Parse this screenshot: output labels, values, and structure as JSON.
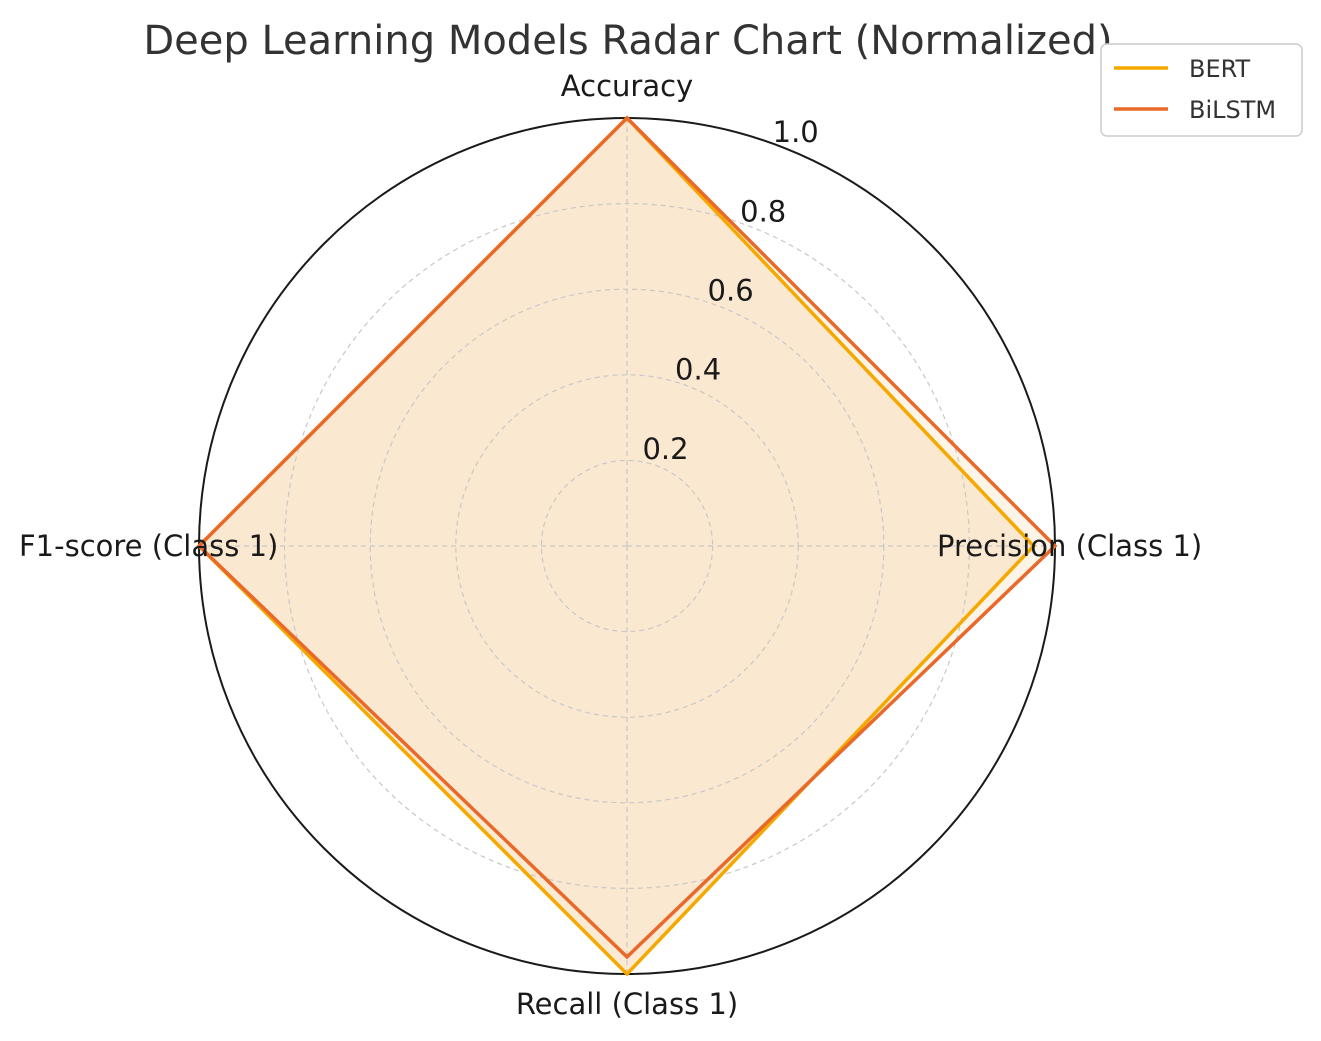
{
  "chart_data": {
    "type": "radar",
    "title": "Deep Learning Models Radar Chart (Normalized)",
    "axes": [
      "Accuracy",
      "Precision (Class 1)",
      "Recall (Class 1)",
      "F1-score (Class 1)"
    ],
    "rlim": [
      0,
      1.0
    ],
    "rticks": [
      "0.2",
      "0.4",
      "0.6",
      "0.8",
      "1.0"
    ],
    "rtick_values": [
      0.2,
      0.4,
      0.6,
      0.8,
      1.0
    ],
    "grid": true,
    "legend_position": "top-right",
    "series": [
      {
        "name": "BERT",
        "values": [
          1.0,
          0.95,
          1.0,
          1.0
        ],
        "color": "#F5A800",
        "fill": "#FBE6CD"
      },
      {
        "name": "BiLSTM",
        "values": [
          1.0,
          1.0,
          0.96,
          1.0
        ],
        "color": "#E8692A",
        "fill": "#FBE6CD"
      }
    ]
  }
}
